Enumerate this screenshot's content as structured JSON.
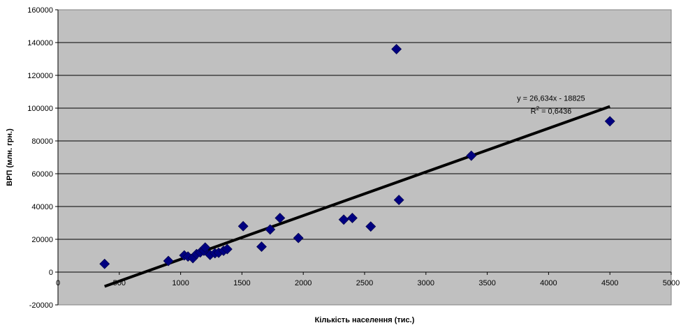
{
  "chart_data": {
    "type": "scatter",
    "title": "",
    "xlabel": "Кількість населення (тис.)",
    "ylabel": "ВРП (млн. грн.)",
    "xlim": [
      0,
      5000
    ],
    "ylim": [
      -20000,
      160000
    ],
    "x_ticks": [
      0,
      500,
      1000,
      1500,
      2000,
      2500,
      3000,
      3500,
      4000,
      4500,
      5000
    ],
    "y_ticks": [
      -20000,
      0,
      20000,
      40000,
      60000,
      80000,
      100000,
      120000,
      140000,
      160000
    ],
    "x_tick_labels": [
      "0",
      "500",
      "1000",
      "1500",
      "2000",
      "2500",
      "3000",
      "3500",
      "4000",
      "4500",
      "5000"
    ],
    "y_tick_labels": [
      "-20000",
      "0",
      "20000",
      "40000",
      "60000",
      "80000",
      "100000",
      "120000",
      "140000",
      "160000"
    ],
    "grid": "horizontal",
    "legend": "none",
    "plot_background": "#c0c0c0",
    "marker_color": "#000080",
    "trendline_color": "#000000",
    "points": [
      {
        "x": 380,
        "y": 5000
      },
      {
        "x": 900,
        "y": 6800
      },
      {
        "x": 1030,
        "y": 10200
      },
      {
        "x": 1060,
        "y": 9500
      },
      {
        "x": 1100,
        "y": 8500
      },
      {
        "x": 1130,
        "y": 11000
      },
      {
        "x": 1160,
        "y": 12000
      },
      {
        "x": 1190,
        "y": 13000
      },
      {
        "x": 1200,
        "y": 15000
      },
      {
        "x": 1240,
        "y": 10500
      },
      {
        "x": 1280,
        "y": 11500
      },
      {
        "x": 1310,
        "y": 11800
      },
      {
        "x": 1350,
        "y": 13000
      },
      {
        "x": 1380,
        "y": 14000
      },
      {
        "x": 1510,
        "y": 28000
      },
      {
        "x": 1660,
        "y": 15500
      },
      {
        "x": 1730,
        "y": 26000
      },
      {
        "x": 1810,
        "y": 33000
      },
      {
        "x": 1960,
        "y": 20800
      },
      {
        "x": 2330,
        "y": 32000
      },
      {
        "x": 2400,
        "y": 33000
      },
      {
        "x": 2550,
        "y": 27800
      },
      {
        "x": 2760,
        "y": 136000
      },
      {
        "x": 2780,
        "y": 44000
      },
      {
        "x": 3370,
        "y": 71000
      },
      {
        "x": 4500,
        "y": 92000
      }
    ],
    "trendline": {
      "slope": 26.634,
      "intercept": -18825,
      "x_range": [
        380,
        4500
      ],
      "equation_label": "y = 26,634x - 18825",
      "r2_prefix": "R",
      "r2_sup": "2",
      "r2_value": " = 0,6436"
    }
  }
}
